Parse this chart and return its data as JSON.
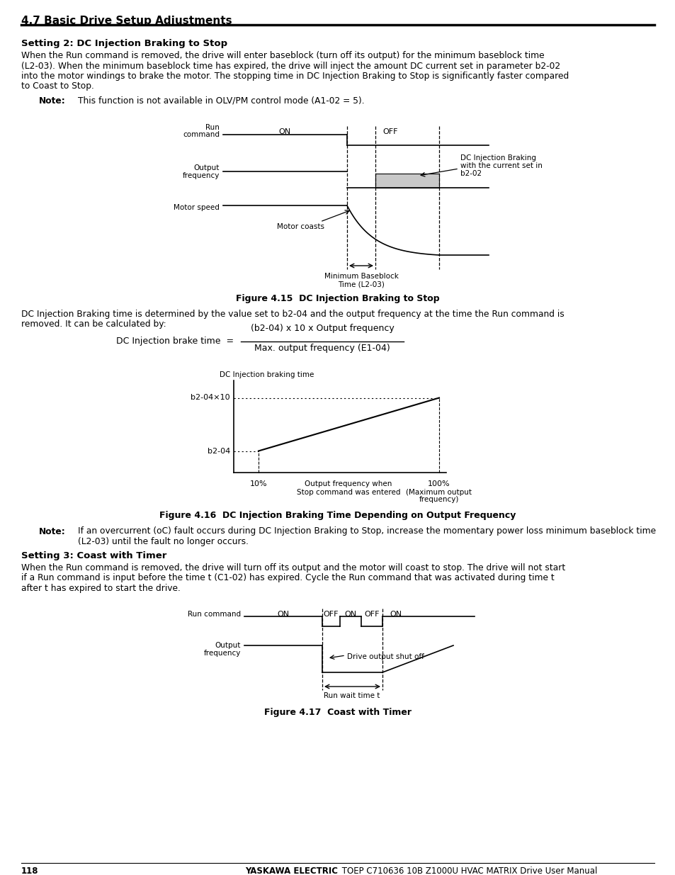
{
  "page_title": "4.7 Basic Drive Setup Adjustments",
  "page_number": "118",
  "footer_bold": "YASKAWA ELECTRIC",
  "footer_rest": " TOEP C710636 10B Z1000U HVAC MATRIX Drive User Manual",
  "setting2_title": "Setting 2: DC Injection Braking to Stop",
  "setting2_body1": "When the Run command is removed, the drive will enter baseblock (turn off its output) for the minimum baseblock time",
  "setting2_body2": "(L2-03). When the minimum baseblock time has expired, the drive will inject the amount DC current set in parameter b2-02",
  "setting2_body3": "into the motor windings to brake the motor. The stopping time in DC Injection Braking to Stop is significantly faster compared",
  "setting2_body4": "to Coast to Stop.",
  "note1_label": "Note:",
  "note1_text": "This function is not available in OLV/PM control mode (A1-02 = 5).",
  "fig415_caption": "Figure 4.15  DC Injection Braking to Stop",
  "fig416_intro1": "DC Injection Braking time is determined by the value set to b2-04 and the output frequency at the time the Run command is",
  "fig416_intro2": "removed. It can be calculated by:",
  "formula_left": "DC Injection brake time  =",
  "formula_numerator": "(b2-04) x 10 x Output frequency",
  "formula_denominator": "Max. output frequency (E1-04)",
  "fig416_ylabel": "DC Injection braking time",
  "fig416_caption": "Figure 4.16  DC Injection Braking Time Depending on Output Frequency",
  "note2_label": "Note:",
  "note2_line1": "If an overcurrent (oC) fault occurs during DC Injection Braking to Stop, increase the momentary power loss minimum baseblock time",
  "note2_line2": "(L2-03) until the fault no longer occurs.",
  "setting3_title": "Setting 3: Coast with Timer",
  "setting3_body1": "When the Run command is removed, the drive will turn off its output and the motor will coast to stop. The drive will not start",
  "setting3_body2": "if a Run command is input before the time t (C1-02) has expired. Cycle the Run command that was activated during time t",
  "setting3_body3": "after t has expired to start the drive.",
  "fig417_caption": "Figure 4.17  Coast with Timer",
  "bg_color": "#ffffff",
  "text_color": "#000000",
  "gray_fill": "#c8c8c8",
  "line_color": "#000000"
}
